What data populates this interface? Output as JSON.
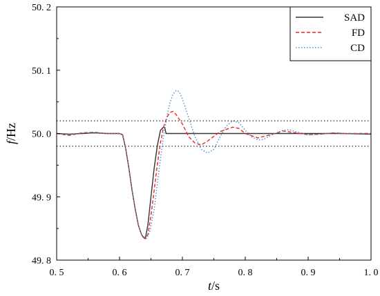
{
  "chart_data": {
    "type": "line",
    "xlabel": {
      "var": "t",
      "unit": "/s"
    },
    "ylabel": {
      "var": "f",
      "unit": "/Hz"
    },
    "xlim": [
      0.5,
      1.0
    ],
    "ylim": [
      49.8,
      50.2
    ],
    "x_ticks": [
      "0.5",
      "0.6",
      "0.7",
      "0.8",
      "0.9",
      "1.0"
    ],
    "y_ticks": [
      "49.8",
      "49.9",
      "50.0",
      "50.1",
      "50.2"
    ],
    "x_tick_values": [
      0.5,
      0.6,
      0.7,
      0.8,
      0.9,
      1.0
    ],
    "y_tick_values": [
      49.8,
      49.9,
      50.0,
      50.1,
      50.2
    ],
    "y_tick_labels": [
      "49. 8",
      "49. 9",
      "50. 0",
      "50. 1",
      "50. 2"
    ],
    "reference_lines": [
      50.02,
      49.98
    ],
    "legend_position": "top-right",
    "series": [
      {
        "name": "SAD",
        "color": "#333333",
        "style": "solid",
        "points": [
          [
            0.5,
            50.0
          ],
          [
            0.52,
            49.999
          ],
          [
            0.54,
            50.0
          ],
          [
            0.56,
            50.001
          ],
          [
            0.58,
            50.0
          ],
          [
            0.6,
            50.0
          ],
          [
            0.605,
            49.998
          ],
          [
            0.61,
            49.975
          ],
          [
            0.615,
            49.945
          ],
          [
            0.62,
            49.91
          ],
          [
            0.625,
            49.88
          ],
          [
            0.63,
            49.855
          ],
          [
            0.635,
            49.84
          ],
          [
            0.638,
            49.836
          ],
          [
            0.641,
            49.834
          ],
          [
            0.645,
            49.855
          ],
          [
            0.65,
            49.9
          ],
          [
            0.655,
            49.945
          ],
          [
            0.66,
            49.98
          ],
          [
            0.665,
            50.005
          ],
          [
            0.67,
            50.01
          ],
          [
            0.672,
            50.009
          ],
          [
            0.674,
            50.0
          ],
          [
            0.7,
            50.0
          ],
          [
            0.75,
            50.0
          ],
          [
            0.8,
            50.0
          ],
          [
            0.85,
            50.0
          ],
          [
            0.9,
            50.0
          ],
          [
            0.95,
            50.0
          ],
          [
            1.0,
            49.999
          ]
        ]
      },
      {
        "name": "FD",
        "color": "#ee2222",
        "style": "dashed",
        "points": [
          [
            0.5,
            50.0
          ],
          [
            0.52,
            49.997
          ],
          [
            0.54,
            50.001
          ],
          [
            0.56,
            50.002
          ],
          [
            0.58,
            50.0
          ],
          [
            0.6,
            50.0
          ],
          [
            0.605,
            49.998
          ],
          [
            0.61,
            49.975
          ],
          [
            0.615,
            49.945
          ],
          [
            0.62,
            49.91
          ],
          [
            0.625,
            49.88
          ],
          [
            0.63,
            49.855
          ],
          [
            0.635,
            49.84
          ],
          [
            0.64,
            49.834
          ],
          [
            0.645,
            49.84
          ],
          [
            0.65,
            49.87
          ],
          [
            0.655,
            49.91
          ],
          [
            0.66,
            49.95
          ],
          [
            0.665,
            49.985
          ],
          [
            0.67,
            50.01
          ],
          [
            0.675,
            50.025
          ],
          [
            0.68,
            50.033
          ],
          [
            0.685,
            50.035
          ],
          [
            0.69,
            50.03
          ],
          [
            0.7,
            50.015
          ],
          [
            0.71,
            49.995
          ],
          [
            0.72,
            49.985
          ],
          [
            0.73,
            49.982
          ],
          [
            0.74,
            49.988
          ],
          [
            0.76,
            50.003
          ],
          [
            0.78,
            50.01
          ],
          [
            0.79,
            50.008
          ],
          [
            0.8,
            50.0
          ],
          [
            0.82,
            49.993
          ],
          [
            0.84,
            49.998
          ],
          [
            0.86,
            50.004
          ],
          [
            0.88,
            50.001
          ],
          [
            0.9,
            49.998
          ],
          [
            0.92,
            49.999
          ],
          [
            0.94,
            50.001
          ],
          [
            0.96,
            50.0
          ],
          [
            1.0,
            50.0
          ]
        ]
      },
      {
        "name": "CD",
        "color": "#3a8fd8",
        "style": "dotted",
        "points": [
          [
            0.5,
            50.0
          ],
          [
            0.52,
            49.998
          ],
          [
            0.54,
            50.001
          ],
          [
            0.56,
            50.002
          ],
          [
            0.58,
            50.0
          ],
          [
            0.6,
            50.0
          ],
          [
            0.605,
            49.998
          ],
          [
            0.61,
            49.975
          ],
          [
            0.615,
            49.945
          ],
          [
            0.62,
            49.91
          ],
          [
            0.625,
            49.88
          ],
          [
            0.63,
            49.855
          ],
          [
            0.635,
            49.84
          ],
          [
            0.643,
            49.834
          ],
          [
            0.648,
            49.845
          ],
          [
            0.655,
            49.88
          ],
          [
            0.66,
            49.92
          ],
          [
            0.665,
            49.96
          ],
          [
            0.67,
            49.995
          ],
          [
            0.675,
            50.025
          ],
          [
            0.68,
            50.048
          ],
          [
            0.685,
            50.062
          ],
          [
            0.69,
            50.068
          ],
          [
            0.695,
            50.066
          ],
          [
            0.7,
            50.055
          ],
          [
            0.71,
            50.025
          ],
          [
            0.72,
            49.995
          ],
          [
            0.73,
            49.975
          ],
          [
            0.74,
            49.969
          ],
          [
            0.75,
            49.975
          ],
          [
            0.76,
            49.995
          ],
          [
            0.77,
            50.012
          ],
          [
            0.78,
            50.02
          ],
          [
            0.79,
            50.017
          ],
          [
            0.8,
            50.005
          ],
          [
            0.81,
            49.995
          ],
          [
            0.82,
            49.99
          ],
          [
            0.83,
            49.991
          ],
          [
            0.84,
            49.997
          ],
          [
            0.86,
            50.005
          ],
          [
            0.87,
            50.006
          ],
          [
            0.88,
            50.003
          ],
          [
            0.9,
            49.998
          ],
          [
            0.92,
            49.999
          ],
          [
            0.94,
            50.001
          ],
          [
            0.96,
            50.0
          ],
          [
            1.0,
            50.0
          ]
        ]
      }
    ]
  }
}
